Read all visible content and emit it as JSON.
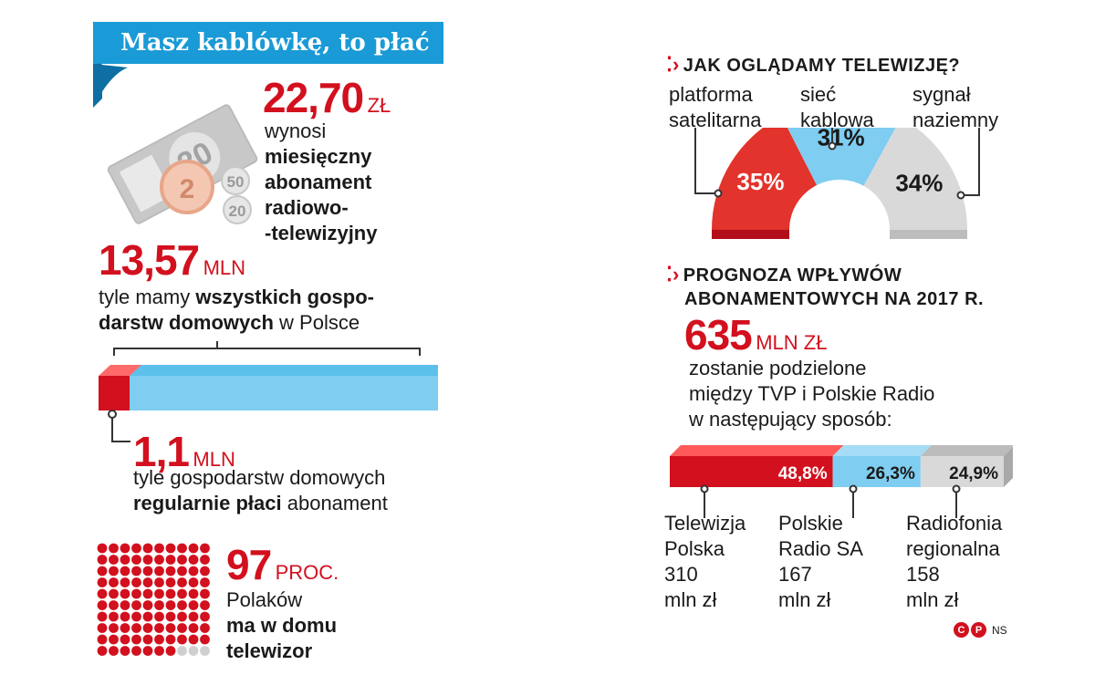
{
  "title": "Masz kablówkę, to płać",
  "fee": {
    "value": "22,70",
    "unit": "ZŁ",
    "line1": "wynosi",
    "bold1": "miesięczny",
    "bold2": "abonament",
    "bold3": "radiowo-",
    "bold4": "-telewizyjny"
  },
  "money_icon": {
    "banknote": "20",
    "coin1": "2",
    "coin2": "50",
    "coin3": "20"
  },
  "households": {
    "value": "13,57",
    "unit": "MLN",
    "text1": "tyle mamy ",
    "text1_bold": "wszystkich gospo-",
    "text2_bold": "darstw domowych",
    "text2": " w Polsce"
  },
  "paying": {
    "value": "1,1",
    "unit": "MLN",
    "text1": "tyle  gospodarstw domowych",
    "text2_bold": "regularnie płaci",
    "text2": " abonament"
  },
  "tv": {
    "value": "97",
    "unit": "PROC.",
    "line1": "Polaków",
    "line2": "ma w domu",
    "line3": "telewizor",
    "filled_fraction": 0.97
  },
  "watching": {
    "title": "JAK OGLĄDAMY TELEWIZJĘ?",
    "labels": [
      {
        "l1": "platforma",
        "l2": "satelitarna"
      },
      {
        "l1": "sieć",
        "l2": "kablowa"
      },
      {
        "l1": "sygnał",
        "l2": "naziemny"
      }
    ]
  },
  "forecast": {
    "title1": "PROGNOZA WPŁYWÓW",
    "title2": "ABONAMENTOWYCH NA 2017 R.",
    "value": "635",
    "unit": "MLN ZŁ",
    "line1": "zostanie podzielone",
    "line2": "między TVP i Polskie Radio",
    "line3": "w następujący sposób:",
    "labels": [
      {
        "l1": "Telewizja",
        "l2": "Polska",
        "l3": "310",
        "l4": "mln zł"
      },
      {
        "l1": "Polskie",
        "l2": "Radio SA",
        "l3": "167",
        "l4": "mln zł"
      },
      {
        "l1": "Radiofonia",
        "l2": "regionalna",
        "l3": "158",
        "l4": "mln zł"
      }
    ]
  },
  "credit": {
    "logo": "CP",
    "initials": "NS"
  },
  "colors": {
    "red": "#d2101e",
    "blue": "#7fcdf0",
    "gray": "#d9d9d9",
    "banner": "#1a9ad6"
  },
  "chart_data": [
    {
      "type": "pie",
      "title": "JAK OGLĄDAMY TELEWIZJĘ?",
      "categories": [
        "platforma satelitarna",
        "sieć kablowa",
        "sygnał naziemny"
      ],
      "values": [
        35,
        31,
        34
      ],
      "value_labels": [
        "35%",
        "31%",
        "34%"
      ],
      "colors": [
        "#e2332c",
        "#7fcdf0",
        "#d9d9d9"
      ]
    },
    {
      "type": "bar",
      "title": "PROGNOZA WPŁYWÓW ABONAMENTOWYCH NA 2017 R.",
      "categories": [
        "Telewizja Polska",
        "Polskie Radio SA",
        "Radiofonia regionalna"
      ],
      "values": [
        48.8,
        26.3,
        24.9
      ],
      "value_labels": [
        "48,8%",
        "26,3%",
        "24,9%"
      ],
      "colors": [
        "#d2101e",
        "#7fcdf0",
        "#d9d9d9"
      ]
    },
    {
      "type": "bar",
      "title": "",
      "categories": [
        "gospodarstwa domowe",
        "regularnie płaci abonament"
      ],
      "values": [
        13.57,
        1.1
      ]
    }
  ]
}
